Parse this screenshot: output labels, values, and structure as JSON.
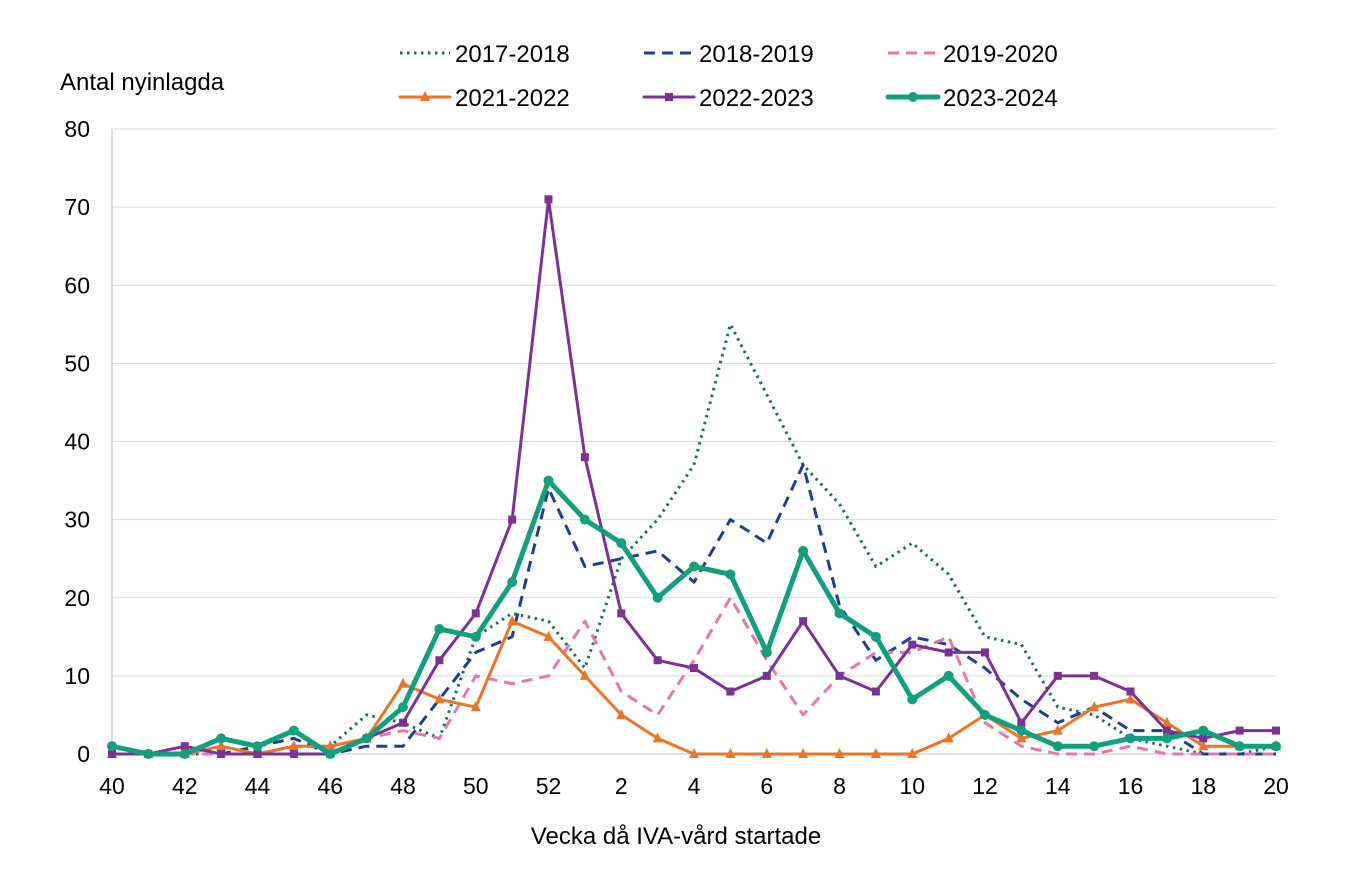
{
  "chart_data": {
    "type": "line",
    "ylabel": "Antal nyinlagda",
    "xlabel": "Vecka då IVA-vård startade",
    "ylim": [
      0,
      80
    ],
    "yticks": [
      0,
      10,
      20,
      30,
      40,
      50,
      60,
      70,
      80
    ],
    "grid": "horizontal",
    "legend_position": "top",
    "categories": [
      "40",
      "41",
      "42",
      "43",
      "44",
      "45",
      "46",
      "47",
      "48",
      "49",
      "50",
      "51",
      "52",
      "1",
      "2",
      "3",
      "4",
      "5",
      "6",
      "7",
      "8",
      "9",
      "10",
      "11",
      "12",
      "13",
      "14",
      "15",
      "16",
      "17",
      "18",
      "19",
      "20"
    ],
    "tick_labels": [
      "40",
      "42",
      "44",
      "46",
      "48",
      "50",
      "52",
      "2",
      "4",
      "6",
      "8",
      "10",
      "12",
      "14",
      "16",
      "18",
      "20"
    ],
    "series": [
      {
        "name": "2017-2018",
        "color": "#1b6f5f",
        "style": "dotted",
        "marker": "none",
        "values": [
          0,
          0,
          0,
          0,
          0,
          1,
          1,
          5,
          4,
          2,
          15,
          18,
          17,
          11,
          25,
          30,
          37,
          55,
          46,
          37,
          32,
          24,
          27,
          23,
          15,
          14,
          6,
          5,
          2,
          1,
          0,
          0,
          1
        ]
      },
      {
        "name": "2018-2019",
        "color": "#1f3f8c",
        "style": "dashed",
        "marker": "none",
        "values": [
          0,
          0,
          0,
          0,
          1,
          2,
          0,
          1,
          1,
          7,
          13,
          15,
          34,
          24,
          25,
          26,
          22,
          30,
          27,
          37,
          19,
          12,
          15,
          14,
          11,
          7,
          4,
          6,
          3,
          3,
          0,
          0,
          0
        ]
      },
      {
        "name": "2019-2020",
        "color": "#e07aad",
        "style": "dashed",
        "marker": "none",
        "values": [
          0,
          0,
          0,
          0,
          0,
          1,
          1,
          2,
          3,
          2,
          10,
          9,
          10,
          17,
          8,
          5,
          12,
          20,
          12,
          5,
          10,
          13,
          13,
          15,
          4,
          1,
          0,
          0,
          1,
          0,
          0,
          0,
          0
        ]
      },
      {
        "name": "2021-2022",
        "color": "#ec7427",
        "style": "solid",
        "marker": "triangle",
        "values": [
          0,
          0,
          0,
          1,
          0,
          1,
          1,
          2,
          9,
          7,
          6,
          17,
          15,
          10,
          5,
          2,
          0,
          0,
          0,
          0,
          0,
          0,
          0,
          2,
          5,
          2,
          3,
          6,
          7,
          4,
          1,
          1,
          1
        ]
      },
      {
        "name": "2022-2023",
        "color": "#7b3294",
        "style": "solid",
        "marker": "square",
        "values": [
          0,
          0,
          1,
          0,
          0,
          0,
          0,
          2,
          4,
          12,
          18,
          30,
          71,
          38,
          18,
          12,
          11,
          8,
          10,
          17,
          10,
          8,
          14,
          13,
          13,
          4,
          10,
          10,
          8,
          3,
          2,
          3,
          3
        ]
      },
      {
        "name": "2023-2024",
        "color": "#10a07e",
        "style": "solid-thick",
        "marker": "circle",
        "values": [
          1,
          0,
          0,
          2,
          1,
          3,
          0,
          2,
          6,
          16,
          15,
          22,
          35,
          30,
          27,
          20,
          24,
          23,
          13,
          26,
          18,
          15,
          7,
          10,
          5,
          3,
          1,
          1,
          2,
          2,
          3,
          1,
          1
        ]
      }
    ]
  }
}
